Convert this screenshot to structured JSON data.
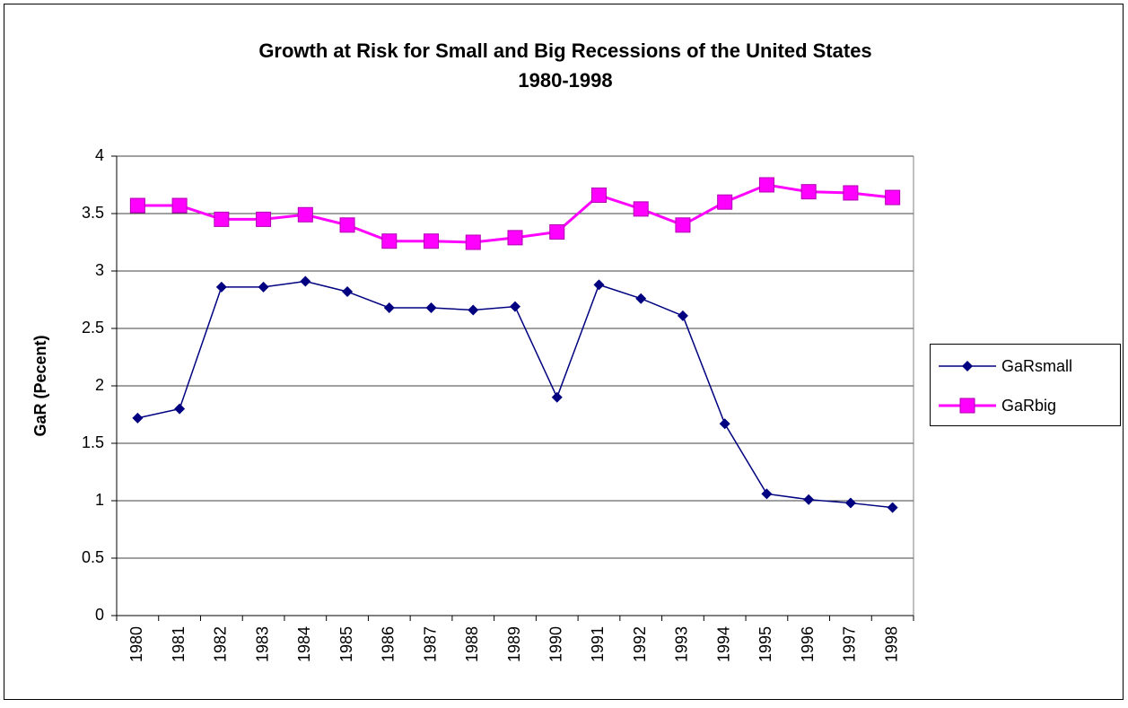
{
  "chart_data": {
    "type": "line",
    "title": [
      "Growth at Risk for Small and Big Recessions of the United States",
      "1980-1998"
    ],
    "y_label": "GaR (Pecent)",
    "categories": [
      "1980",
      "1981",
      "1982",
      "1983",
      "1984",
      "1985",
      "1986",
      "1987",
      "1988",
      "1989",
      "1990",
      "1991",
      "1992",
      "1993",
      "1994",
      "1995",
      "1996",
      "1997",
      "1998"
    ],
    "series": [
      {
        "name": "GaRsmall",
        "color": "#000080",
        "marker": "diamond",
        "values": [
          1.72,
          1.8,
          2.86,
          2.86,
          2.91,
          2.82,
          2.68,
          2.68,
          2.66,
          2.69,
          1.9,
          2.88,
          2.76,
          2.61,
          1.67,
          1.06,
          1.01,
          0.98,
          0.94
        ]
      },
      {
        "name": "GaRbig",
        "color": "#ff00ff",
        "marker": "square",
        "values": [
          3.57,
          3.57,
          3.45,
          3.45,
          3.49,
          3.4,
          3.26,
          3.26,
          3.25,
          3.29,
          3.34,
          3.66,
          3.54,
          3.4,
          3.6,
          3.75,
          3.69,
          3.68,
          3.64
        ]
      }
    ],
    "ylim": [
      0,
      4
    ],
    "yticks": [
      0,
      0.5,
      1,
      1.5,
      2,
      2.5,
      3,
      3.5,
      4
    ],
    "grid": true,
    "legend": "right"
  }
}
